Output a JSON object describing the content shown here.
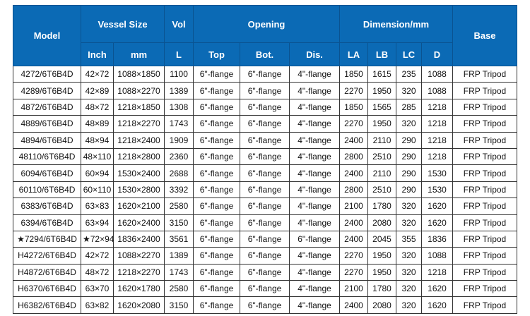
{
  "table": {
    "header": {
      "model": "Model",
      "vessel_size": "Vessel Size",
      "inch": "Inch",
      "mm": "mm",
      "vol": "Vol",
      "l": "L",
      "opening": "Opening",
      "top": "Top",
      "bot": "Bot.",
      "dis": "Dis.",
      "dimension": "Dimension/mm",
      "la": "LA",
      "lb": "LB",
      "lc": "LC",
      "d": "D",
      "base": "Base"
    },
    "rows": [
      [
        "4272/6T6B4D",
        "42×72",
        "1088×1850",
        "1100",
        "6\"-flange",
        "6\"-flange",
        "4\"-flange",
        "1850",
        "1615",
        "235",
        "1088",
        "FRP Tripod"
      ],
      [
        "4289/6T6B4D",
        "42×89",
        "1088×2270",
        "1389",
        "6\"-flange",
        "6\"-flange",
        "4\"-flange",
        "2270",
        "1950",
        "320",
        "1088",
        "FRP Tripod"
      ],
      [
        "4872/6T6B4D",
        "48×72",
        "1218×1850",
        "1308",
        "6\"-flange",
        "6\"-flange",
        "4\"-flange",
        "1850",
        "1565",
        "285",
        "1218",
        "FRP Tripod"
      ],
      [
        "4889/6T6B4D",
        "48×89",
        "1218×2270",
        "1743",
        "6\"-flange",
        "6\"-flange",
        "4\"-flange",
        "2270",
        "1950",
        "320",
        "1218",
        "FRP Tripod"
      ],
      [
        "4894/6T6B4D",
        "48×94",
        "1218×2400",
        "1909",
        "6\"-flange",
        "6\"-flange",
        "4\"-flange",
        "2400",
        "2110",
        "290",
        "1218",
        "FRP Tripod"
      ],
      [
        "48110/6T6B4D",
        "48×110",
        "1218×2800",
        "2360",
        "6\"-flange",
        "6\"-flange",
        "4\"-flange",
        "2800",
        "2510",
        "290",
        "1218",
        "FRP Tripod"
      ],
      [
        "6094/6T6B4D",
        "60×94",
        "1530×2400",
        "2688",
        "6\"-flange",
        "6\"-flange",
        "4\"-flange",
        "2400",
        "2110",
        "290",
        "1530",
        "FRP Tripod"
      ],
      [
        "60110/6T6B4D",
        "60×110",
        "1530×2800",
        "3392",
        "6\"-flange",
        "6\"-flange",
        "4\"-flange",
        "2800",
        "2510",
        "290",
        "1530",
        "FRP Tripod"
      ],
      [
        "6383/6T6B4D",
        "63×83",
        "1620×2100",
        "2580",
        "6\"-flange",
        "6\"-flange",
        "4\"-flange",
        "2100",
        "1780",
        "320",
        "1620",
        "FRP Tripod"
      ],
      [
        "6394/6T6B4D",
        "63×94",
        "1620×2400",
        "3150",
        "6\"-flange",
        "6\"-flange",
        "4\"-flange",
        "2400",
        "2080",
        "320",
        "1620",
        "FRP Tripod"
      ],
      [
        "★7294/6T6B4D",
        "★72×94",
        "1836×2400",
        "3561",
        "6\"-flange",
        "6\"-flange",
        "6\"-flange",
        "2400",
        "2045",
        "355",
        "1836",
        "FRP Tripod"
      ],
      [
        "H4272/6T6B4D",
        "42×72",
        "1088×2270",
        "1389",
        "6\"-flange",
        "6\"-flange",
        "4\"-flange",
        "2270",
        "1950",
        "320",
        "1088",
        "FRP Tripod"
      ],
      [
        "H4872/6T6B4D",
        "48×72",
        "1218×2270",
        "1743",
        "6\"-flange",
        "6\"-flange",
        "4\"-flange",
        "2270",
        "1950",
        "320",
        "1218",
        "FRP Tripod"
      ],
      [
        "H6370/6T6B4D",
        "63×70",
        "1620×1780",
        "2580",
        "6\"-flange",
        "6\"-flange",
        "4\"-flange",
        "2100",
        "1780",
        "320",
        "1620",
        "FRP Tripod"
      ],
      [
        "H6382/6T6B4D",
        "63×82",
        "1620×2080",
        "3150",
        "6\"-flange",
        "6\"-flange",
        "4\"-flange",
        "2400",
        "2080",
        "320",
        "1620",
        "FRP Tripod"
      ]
    ]
  },
  "colors": {
    "header_bg": "#0b6ab5",
    "header_text": "#ffffff",
    "header_border": "#0a5391",
    "border": "#333333",
    "text": "#111111",
    "page_bg": "#ffffff"
  }
}
